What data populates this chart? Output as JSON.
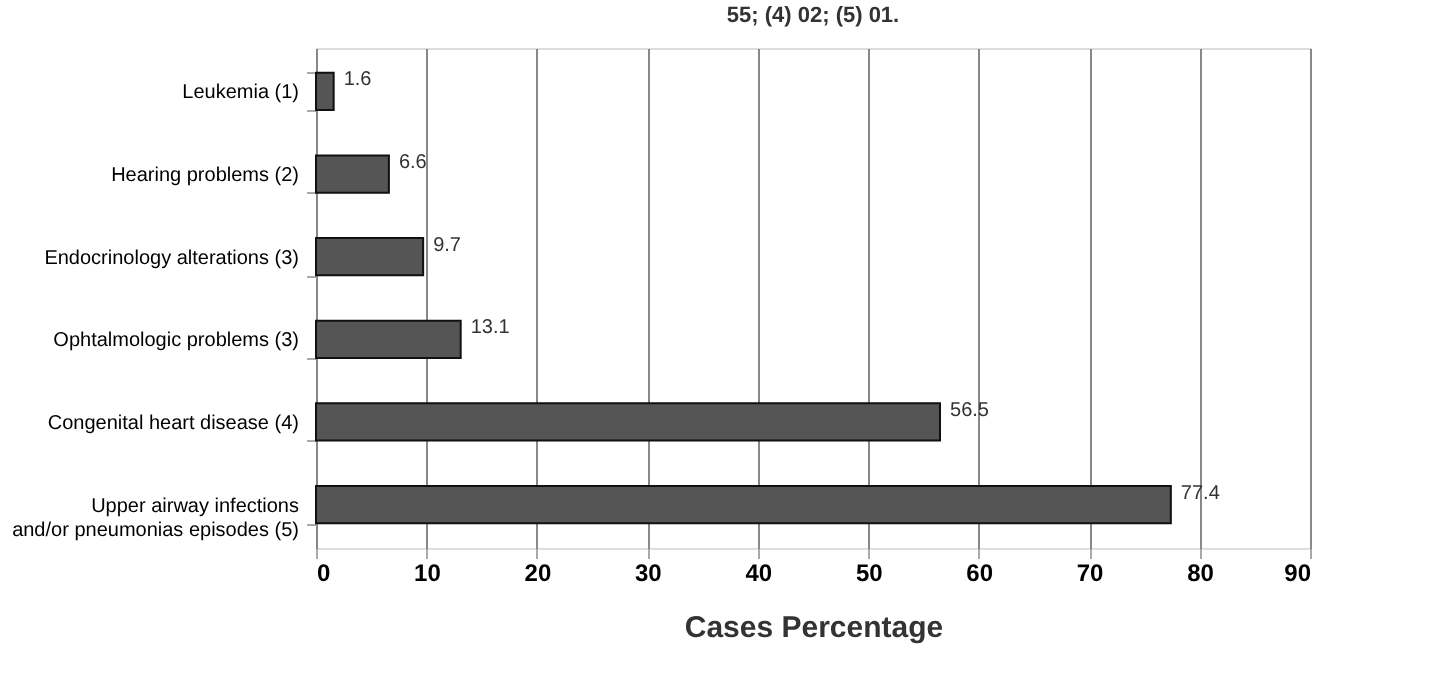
{
  "chart_data": {
    "type": "bar",
    "orientation": "horizontal",
    "xlabel": "Cases Percentage",
    "annotations": [
      "55; (4) 02; (5) 01."
    ],
    "categories": [
      "Leukemia (1)",
      "Hearing problems (2)",
      "Endocrinology alterations (3)",
      "Ophtalmologic problems (3)",
      "Congenital heart disease (4)",
      "Upper airway infections and/or pneumonias episodes (5)"
    ],
    "values": [
      1.6,
      6.6,
      9.7,
      13.1,
      56.5,
      77.4
    ],
    "color": "#555555",
    "data_labels": true,
    "xlim": [
      0,
      90
    ],
    "xticks": [
      0,
      10,
      20,
      30,
      40,
      50,
      60,
      70,
      80,
      90
    ],
    "grid": "x"
  }
}
